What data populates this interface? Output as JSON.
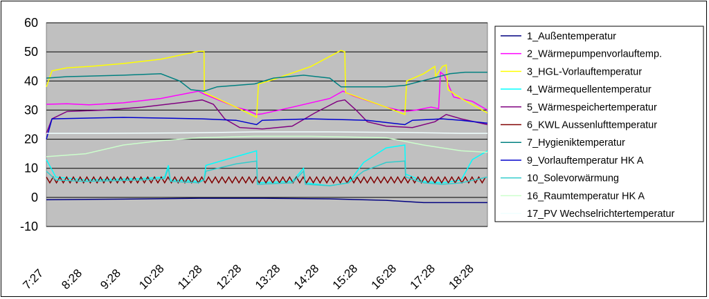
{
  "chart_data": {
    "type": "line",
    "plot_bg": "#c0c0c0",
    "grid": true,
    "legend_position": "right",
    "ylim": [
      -10,
      60
    ],
    "yticks": [
      "60",
      "50",
      "40",
      "30",
      "20",
      "10",
      "0",
      "-10"
    ],
    "xlim": [
      7.45,
      19.2
    ],
    "xticks": [
      "7:27",
      "8:28",
      "9:28",
      "10:28",
      "11:28",
      "12:28",
      "13:28",
      "14:28",
      "15:28",
      "16:28",
      "17:28",
      "18:28"
    ],
    "series": [
      {
        "name": "1_Außentemperatur",
        "color": "#000080",
        "points": [
          [
            7.45,
            -0.8
          ],
          [
            9.5,
            -0.6
          ],
          [
            11.5,
            -0.3
          ],
          [
            13.2,
            -0.3
          ],
          [
            15.0,
            -0.5
          ],
          [
            16.5,
            -1.0
          ],
          [
            17.5,
            -1.8
          ],
          [
            19.2,
            -1.8
          ]
        ]
      },
      {
        "name": "2_Wärmepumpenvorlauftemp.",
        "color": "#ff00ff",
        "points": [
          [
            7.45,
            32
          ],
          [
            8.0,
            32.2
          ],
          [
            8.6,
            31.8
          ],
          [
            9.5,
            32.5
          ],
          [
            10.5,
            34
          ],
          [
            11.5,
            36.5
          ],
          [
            11.65,
            35.5
          ],
          [
            12.5,
            31
          ],
          [
            12.8,
            30
          ],
          [
            13.05,
            28.5
          ],
          [
            13.2,
            28.7
          ],
          [
            14.0,
            31
          ],
          [
            15.0,
            34
          ],
          [
            15.35,
            36.5
          ],
          [
            15.6,
            35
          ],
          [
            16.5,
            31
          ],
          [
            17.0,
            29.5
          ],
          [
            17.3,
            30
          ],
          [
            17.7,
            31
          ],
          [
            17.9,
            30.5
          ],
          [
            17.95,
            43
          ],
          [
            18.05,
            42
          ],
          [
            18.3,
            34.5
          ],
          [
            18.8,
            33
          ],
          [
            19.2,
            30
          ]
        ]
      },
      {
        "name": "3_HGL-Vorlauftemperatur",
        "color": "#ffff00",
        "points": [
          [
            7.45,
            38
          ],
          [
            7.6,
            43.5
          ],
          [
            8.0,
            44.5
          ],
          [
            8.6,
            45
          ],
          [
            9.5,
            46
          ],
          [
            10.5,
            47.5
          ],
          [
            11.5,
            50.2
          ],
          [
            11.65,
            50.2
          ],
          [
            11.66,
            36
          ],
          [
            12.5,
            31
          ],
          [
            13.05,
            27.5
          ],
          [
            13.1,
            39
          ],
          [
            13.5,
            40.5
          ],
          [
            14.5,
            45
          ],
          [
            15.3,
            50.5
          ],
          [
            15.4,
            50
          ],
          [
            15.42,
            36
          ],
          [
            16.5,
            31
          ],
          [
            17.0,
            28.5
          ],
          [
            17.05,
            40
          ],
          [
            17.5,
            42.5
          ],
          [
            17.8,
            45
          ],
          [
            17.82,
            41.5
          ],
          [
            18.0,
            45
          ],
          [
            18.1,
            45.5
          ],
          [
            18.15,
            37
          ],
          [
            18.5,
            34
          ],
          [
            19.2,
            29
          ]
        ]
      },
      {
        "name": "4_Wärmequellentemperatur",
        "color": "#00ffff",
        "points": [
          [
            7.45,
            13
          ],
          [
            7.7,
            7
          ],
          [
            8.5,
            6
          ],
          [
            10.0,
            6.5
          ],
          [
            10.6,
            7
          ],
          [
            10.7,
            11
          ],
          [
            10.75,
            6
          ],
          [
            11.5,
            5.5
          ],
          [
            11.65,
            6
          ],
          [
            11.7,
            11
          ],
          [
            12.5,
            14
          ],
          [
            13.05,
            16
          ],
          [
            13.07,
            5
          ],
          [
            14.0,
            5.5
          ],
          [
            14.3,
            10
          ],
          [
            14.35,
            5
          ],
          [
            15.0,
            4
          ],
          [
            15.5,
            5
          ],
          [
            15.9,
            12
          ],
          [
            16.5,
            17
          ],
          [
            17.0,
            18
          ],
          [
            17.02,
            8
          ],
          [
            17.5,
            5.5
          ],
          [
            18.0,
            5
          ],
          [
            18.5,
            6
          ],
          [
            18.8,
            13
          ],
          [
            19.2,
            16
          ]
        ]
      },
      {
        "name": "5_Wärmespeichertemperatur",
        "color": "#800080",
        "points": [
          [
            7.45,
            22
          ],
          [
            7.6,
            27
          ],
          [
            8.0,
            29.5
          ],
          [
            9.0,
            30
          ],
          [
            10.0,
            31
          ],
          [
            11.0,
            32.5
          ],
          [
            11.6,
            33.5
          ],
          [
            11.9,
            32
          ],
          [
            12.2,
            27
          ],
          [
            12.6,
            24
          ],
          [
            13.2,
            23.5
          ],
          [
            14.0,
            24.5
          ],
          [
            14.6,
            29
          ],
          [
            15.2,
            33
          ],
          [
            15.4,
            33.5
          ],
          [
            15.7,
            30
          ],
          [
            16.0,
            26
          ],
          [
            16.5,
            24.5
          ],
          [
            17.2,
            24
          ],
          [
            17.8,
            26
          ],
          [
            18.1,
            28.5
          ],
          [
            18.5,
            27
          ],
          [
            19.2,
            25
          ]
        ]
      },
      {
        "name": "6_KWL Aussenlufttemperatur",
        "color": "#800000",
        "points": [
          [
            7.45,
            6
          ],
          [
            19.2,
            6
          ]
        ]
      },
      {
        "name": "7_Hygieniktemperatur",
        "color": "#008080",
        "points": [
          [
            7.45,
            41
          ],
          [
            8.0,
            41.5
          ],
          [
            9.5,
            42
          ],
          [
            10.5,
            42.5
          ],
          [
            11.0,
            40
          ],
          [
            11.3,
            37
          ],
          [
            11.65,
            36.5
          ],
          [
            12.0,
            38
          ],
          [
            13.0,
            39
          ],
          [
            13.5,
            41
          ],
          [
            14.3,
            42
          ],
          [
            15.0,
            41
          ],
          [
            15.3,
            38
          ],
          [
            16.5,
            38
          ],
          [
            17.0,
            38.5
          ],
          [
            17.6,
            40.5
          ],
          [
            18.2,
            42.5
          ],
          [
            18.6,
            43
          ],
          [
            19.2,
            43
          ]
        ]
      },
      {
        "name": "9_Vorlauftemperatur HK A",
        "color": "#0000cc",
        "points": [
          [
            7.45,
            20
          ],
          [
            7.6,
            27
          ],
          [
            9.5,
            27.5
          ],
          [
            11.6,
            27
          ],
          [
            12.5,
            26.5
          ],
          [
            13.05,
            25
          ],
          [
            13.2,
            26.5
          ],
          [
            14.5,
            27
          ],
          [
            16.0,
            26.5
          ],
          [
            17.0,
            25
          ],
          [
            17.2,
            26.5
          ],
          [
            18.0,
            27
          ],
          [
            18.5,
            26.5
          ],
          [
            19.2,
            25.5
          ]
        ]
      },
      {
        "name": "10_Solevorwärmung",
        "color": "#33cccc",
        "points": [
          [
            7.45,
            9
          ],
          [
            7.7,
            6
          ],
          [
            8.5,
            5.5
          ],
          [
            10.0,
            6
          ],
          [
            10.6,
            6.5
          ],
          [
            10.7,
            10
          ],
          [
            10.75,
            5.5
          ],
          [
            11.5,
            5
          ],
          [
            11.65,
            6
          ],
          [
            11.7,
            9
          ],
          [
            12.5,
            11.5
          ],
          [
            13.05,
            12.5
          ],
          [
            13.07,
            4.5
          ],
          [
            14.0,
            5
          ],
          [
            14.3,
            9
          ],
          [
            14.35,
            4.5
          ],
          [
            15.0,
            4
          ],
          [
            15.5,
            5
          ],
          [
            15.9,
            9
          ],
          [
            16.5,
            12
          ],
          [
            17.0,
            12.5
          ],
          [
            17.02,
            7
          ],
          [
            17.5,
            5
          ],
          [
            18.0,
            4.5
          ],
          [
            18.5,
            5
          ],
          [
            19.2,
            7
          ]
        ]
      },
      {
        "name": "16_Raumtemperatur HK A",
        "color": "#ccffcc",
        "points": [
          [
            7.45,
            14
          ],
          [
            8.5,
            15
          ],
          [
            9.5,
            18
          ],
          [
            10.5,
            19.5
          ],
          [
            11.5,
            20.5
          ],
          [
            13.0,
            21
          ],
          [
            14.5,
            21
          ],
          [
            16.5,
            20.5
          ],
          [
            17.5,
            18
          ],
          [
            18.5,
            16
          ],
          [
            19.2,
            15.5
          ]
        ]
      },
      {
        "name": "17_PV Wechselrichtertemperatur",
        "color": "#f0ffff",
        "points": [
          [
            7.45,
            22
          ],
          [
            9.0,
            22
          ],
          [
            11.5,
            22.2
          ],
          [
            13.0,
            22.5
          ],
          [
            15.0,
            22.5
          ],
          [
            17.0,
            22.3
          ],
          [
            18.5,
            22
          ],
          [
            19.2,
            22
          ]
        ]
      }
    ]
  }
}
